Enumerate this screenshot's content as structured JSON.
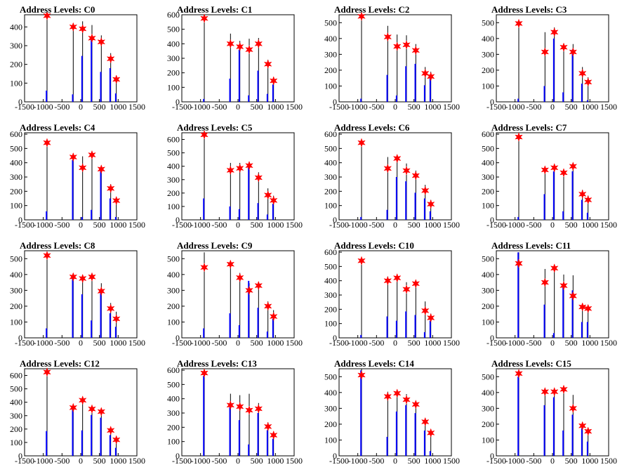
{
  "chart_data": [
    {
      "title": "Address Levels: C0",
      "type": "bar",
      "xlim": [
        -1500,
        1500
      ],
      "ylim": [
        0,
        465
      ],
      "yticks": [
        0,
        100,
        200,
        300,
        400
      ],
      "xticks": [
        -1500,
        -1000,
        -500,
        0,
        500,
        1000,
        1500
      ],
      "series": [
        {
          "x": [
            -900,
            -200,
            50,
            300,
            550,
            800,
            950
          ],
          "values": [
            460,
            400,
            390,
            340,
            320,
            230,
            120
          ],
          "errors": [
            0,
            0,
            40,
            70,
            35,
            30,
            20
          ]
        },
        {
          "x": [
            -915,
            -215,
            35,
            285,
            535,
            785,
            935
          ],
          "values": [
            60,
            40,
            245,
            330,
            160,
            180,
            45
          ]
        }
      ]
    },
    {
      "title": "Address Levels: C1",
      "type": "bar",
      "xlim": [
        -1500,
        1500
      ],
      "ylim": [
        0,
        600
      ],
      "yticks": [
        0,
        100,
        200,
        300,
        400,
        500,
        600
      ],
      "xticks": [
        -1500,
        -1000,
        -500,
        0,
        500,
        1000,
        1500
      ],
      "series": [
        {
          "x": [
            -900,
            -200,
            50,
            300,
            550,
            800,
            950
          ],
          "values": [
            575,
            400,
            380,
            360,
            400,
            260,
            145
          ],
          "errors": [
            0,
            70,
            40,
            75,
            40,
            30,
            25
          ]
        },
        {
          "x": [
            -915,
            -215,
            35,
            285,
            535,
            785,
            935
          ],
          "values": [
            20,
            160,
            360,
            45,
            215,
            55,
            120
          ]
        }
      ]
    },
    {
      "title": "Address Levels: C2",
      "type": "bar",
      "xlim": [
        -1500,
        1500
      ],
      "ylim": [
        0,
        550
      ],
      "yticks": [
        0,
        100,
        200,
        300,
        400,
        500
      ],
      "xticks": [
        -1500,
        -1000,
        -500,
        0,
        500,
        1000,
        1500
      ],
      "series": [
        {
          "x": [
            -900,
            -200,
            50,
            300,
            550,
            800,
            950
          ],
          "values": [
            540,
            410,
            350,
            360,
            325,
            180,
            160
          ],
          "errors": [
            0,
            70,
            75,
            60,
            40,
            40,
            30
          ]
        },
        {
          "x": [
            -915,
            -215,
            35,
            285,
            535,
            785,
            935
          ],
          "values": [
            20,
            170,
            40,
            225,
            240,
            105,
            160
          ]
        }
      ]
    },
    {
      "title": "Address Levels: C3",
      "type": "bar",
      "xlim": [
        -1500,
        1500
      ],
      "ylim": [
        0,
        550
      ],
      "yticks": [
        0,
        100,
        200,
        300,
        400,
        500
      ],
      "xticks": [
        -1500,
        -1000,
        -500,
        0,
        500,
        1000,
        1500
      ],
      "series": [
        {
          "x": [
            -900,
            -200,
            50,
            300,
            550,
            800,
            950
          ],
          "values": [
            495,
            315,
            440,
            345,
            315,
            180,
            125
          ],
          "errors": [
            0,
            125,
            30,
            20,
            50,
            40,
            30
          ]
        },
        {
          "x": [
            -915,
            -215,
            35,
            285,
            535,
            785,
            935
          ],
          "values": [
            20,
            100,
            400,
            60,
            330,
            115,
            10
          ]
        }
      ]
    },
    {
      "title": "Address Levels: C4",
      "type": "bar",
      "xlim": [
        -1500,
        1500
      ],
      "ylim": [
        0,
        610
      ],
      "yticks": [
        0,
        100,
        200,
        300,
        400,
        500,
        600
      ],
      "xticks": [
        -1500,
        -1000,
        -500,
        0,
        500,
        1000,
        1500
      ],
      "series": [
        {
          "x": [
            -900,
            -200,
            50,
            300,
            550,
            800,
            950
          ],
          "values": [
            540,
            440,
            365,
            455,
            355,
            220,
            135
          ],
          "errors": [
            0,
            20,
            80,
            20,
            25,
            30,
            20
          ]
        },
        {
          "x": [
            -915,
            -215,
            35,
            285,
            535,
            785,
            935
          ],
          "values": [
            60,
            420,
            20,
            70,
            350,
            150,
            20
          ]
        }
      ]
    },
    {
      "title": "Address Levels: C5",
      "type": "bar",
      "xlim": [
        -1500,
        1500
      ],
      "ylim": [
        0,
        650
      ],
      "yticks": [
        0,
        100,
        200,
        300,
        400,
        500,
        600
      ],
      "xticks": [
        -1500,
        -1000,
        -500,
        0,
        500,
        1000,
        1500
      ],
      "series": [
        {
          "x": [
            -900,
            -200,
            50,
            300,
            550,
            800,
            950
          ],
          "values": [
            635,
            370,
            385,
            405,
            315,
            185,
            145
          ],
          "errors": [
            0,
            55,
            40,
            30,
            40,
            50,
            35
          ]
        },
        {
          "x": [
            -915,
            -215,
            35,
            285,
            535,
            785,
            935
          ],
          "values": [
            160,
            100,
            80,
            400,
            125,
            40,
            120
          ]
        }
      ]
    },
    {
      "title": "Address Levels: C6",
      "type": "bar",
      "xlim": [
        -1500,
        1500
      ],
      "ylim": [
        0,
        610
      ],
      "yticks": [
        0,
        100,
        200,
        300,
        400,
        500,
        600
      ],
      "xticks": [
        -1500,
        -1000,
        -500,
        0,
        500,
        1000,
        1500
      ],
      "series": [
        {
          "x": [
            -900,
            -200,
            50,
            300,
            550,
            800,
            950
          ],
          "values": [
            540,
            360,
            430,
            345,
            310,
            205,
            110
          ],
          "errors": [
            0,
            80,
            20,
            50,
            35,
            40,
            30
          ]
        },
        {
          "x": [
            -915,
            -215,
            35,
            285,
            535,
            785,
            935
          ],
          "values": [
            20,
            70,
            300,
            270,
            190,
            150,
            60
          ]
        }
      ]
    },
    {
      "title": "Address Levels: C7",
      "type": "bar",
      "xlim": [
        -1500,
        1500
      ],
      "ylim": [
        0,
        610
      ],
      "yticks": [
        0,
        100,
        200,
        300,
        400,
        500,
        600
      ],
      "xticks": [
        -1500,
        -1000,
        -500,
        0,
        500,
        1000,
        1500
      ],
      "series": [
        {
          "x": [
            -900,
            -200,
            50,
            300,
            550,
            800,
            950
          ],
          "values": [
            580,
            350,
            365,
            330,
            375,
            180,
            140
          ],
          "errors": [
            0,
            20,
            20,
            20,
            15,
            30,
            30
          ]
        },
        {
          "x": [
            -915,
            -215,
            35,
            285,
            535,
            785,
            935
          ],
          "values": [
            20,
            180,
            340,
            60,
            340,
            140,
            50
          ]
        }
      ]
    },
    {
      "title": "Address Levels: C8",
      "type": "bar",
      "xlim": [
        -1500,
        1500
      ],
      "ylim": [
        0,
        550
      ],
      "yticks": [
        0,
        100,
        200,
        300,
        400,
        500
      ],
      "xticks": [
        -1500,
        -1000,
        -500,
        0,
        500,
        1000,
        1500
      ],
      "series": [
        {
          "x": [
            -900,
            -200,
            50,
            300,
            550,
            800,
            950
          ],
          "values": [
            520,
            385,
            375,
            385,
            295,
            185,
            120
          ],
          "errors": [
            0,
            20,
            20,
            20,
            50,
            35,
            45
          ]
        },
        {
          "x": [
            -915,
            -215,
            35,
            285,
            535,
            785,
            935
          ],
          "values": [
            60,
            380,
            275,
            110,
            290,
            155,
            70
          ]
        }
      ]
    },
    {
      "title": "Address Levels: C9",
      "type": "bar",
      "xlim": [
        -1500,
        1500
      ],
      "ylim": [
        0,
        550
      ],
      "yticks": [
        0,
        100,
        200,
        300,
        400,
        500
      ],
      "xticks": [
        -1500,
        -1000,
        -500,
        0,
        500,
        1000,
        1500
      ],
      "series": [
        {
          "x": [
            -900,
            -200,
            50,
            300,
            550,
            800,
            950
          ],
          "values": [
            445,
            465,
            380,
            300,
            330,
            200,
            135
          ],
          "errors": [
            95,
            20,
            30,
            45,
            25,
            30,
            40
          ]
        },
        {
          "x": [
            -915,
            -215,
            35,
            285,
            535,
            785,
            935
          ],
          "values": [
            60,
            155,
            80,
            360,
            190,
            40,
            120
          ]
        }
      ]
    },
    {
      "title": "Address Levels: C10",
      "type": "bar",
      "xlim": [
        -1500,
        1500
      ],
      "ylim": [
        0,
        610
      ],
      "yticks": [
        0,
        100,
        200,
        300,
        400,
        500,
        600
      ],
      "xticks": [
        -1500,
        -1000,
        -500,
        0,
        500,
        1000,
        1500
      ],
      "series": [
        {
          "x": [
            -900,
            -200,
            50,
            300,
            550,
            800,
            950
          ],
          "values": [
            540,
            400,
            420,
            340,
            380,
            190,
            140
          ],
          "errors": [
            0,
            30,
            20,
            50,
            20,
            65,
            30
          ]
        },
        {
          "x": [
            -915,
            -215,
            35,
            285,
            535,
            785,
            935
          ],
          "values": [
            20,
            150,
            120,
            185,
            160,
            40,
            120
          ]
        }
      ]
    },
    {
      "title": "Address Levels: C11",
      "type": "bar",
      "xlim": [
        -1500,
        1500
      ],
      "ylim": [
        0,
        550
      ],
      "yticks": [
        0,
        100,
        200,
        300,
        400,
        500
      ],
      "xticks": [
        -1500,
        -1000,
        -500,
        0,
        500,
        1000,
        1500
      ],
      "series": [
        {
          "x": [
            -900,
            -200,
            50,
            300,
            550,
            800,
            950
          ],
          "values": [
            470,
            350,
            440,
            330,
            265,
            195,
            185
          ],
          "errors": [
            70,
            85,
            20,
            70,
            130,
            20,
            20
          ]
        },
        {
          "x": [
            -915,
            -215,
            35,
            285,
            535,
            785,
            935
          ],
          "values": [
            540,
            210,
            30,
            320,
            300,
            100,
            100
          ]
        }
      ]
    },
    {
      "title": "Address Levels: C12",
      "type": "bar",
      "xlim": [
        -1500,
        1500
      ],
      "ylim": [
        0,
        650
      ],
      "yticks": [
        0,
        100,
        200,
        300,
        400,
        500,
        600
      ],
      "xticks": [
        -1500,
        -1000,
        -500,
        0,
        500,
        1000,
        1500
      ],
      "series": [
        {
          "x": [
            -900,
            -200,
            50,
            300,
            550,
            800,
            950
          ],
          "values": [
            625,
            360,
            415,
            350,
            330,
            190,
            120
          ],
          "errors": [
            0,
            20,
            20,
            20,
            20,
            20,
            20
          ]
        },
        {
          "x": [
            -915,
            -215,
            35,
            285,
            535,
            785,
            935
          ],
          "values": [
            185,
            350,
            190,
            305,
            285,
            155,
            60
          ]
        }
      ]
    },
    {
      "title": "Address Levels: C13",
      "type": "bar",
      "xlim": [
        -1500,
        1500
      ],
      "ylim": [
        0,
        610
      ],
      "yticks": [
        0,
        100,
        200,
        300,
        400,
        500,
        600
      ],
      "xticks": [
        -1500,
        -1000,
        -500,
        0,
        500,
        1000,
        1500
      ],
      "series": [
        {
          "x": [
            -900,
            -200,
            50,
            300,
            550,
            800,
            950
          ],
          "values": [
            580,
            355,
            345,
            320,
            330,
            205,
            145
          ],
          "errors": [
            0,
            80,
            80,
            115,
            40,
            30,
            20
          ]
        },
        {
          "x": [
            -915,
            -215,
            35,
            285,
            535,
            785,
            935
          ],
          "values": [
            560,
            340,
            250,
            80,
            300,
            180,
            120
          ]
        }
      ]
    },
    {
      "title": "Address Levels: C14",
      "type": "bar",
      "xlim": [
        -1500,
        1500
      ],
      "ylim": [
        0,
        550
      ],
      "yticks": [
        0,
        100,
        200,
        300,
        400,
        500
      ],
      "xticks": [
        -1500,
        -1000,
        -500,
        0,
        500,
        1000,
        1500
      ],
      "series": [
        {
          "x": [
            -900,
            -200,
            50,
            300,
            550,
            800,
            950
          ],
          "values": [
            510,
            375,
            395,
            355,
            325,
            215,
            145
          ],
          "errors": [
            50,
            30,
            20,
            35,
            20,
            20,
            20
          ]
        },
        {
          "x": [
            -915,
            -215,
            35,
            285,
            535,
            785,
            935
          ],
          "values": [
            540,
            120,
            280,
            320,
            270,
            160,
            30
          ]
        }
      ]
    },
    {
      "title": "Address Levels: C15",
      "type": "bar",
      "xlim": [
        -1500,
        1500
      ],
      "ylim": [
        0,
        550
      ],
      "yticks": [
        0,
        100,
        200,
        300,
        400,
        500
      ],
      "xticks": [
        -1500,
        -1000,
        -500,
        0,
        500,
        1000,
        1500
      ],
      "series": [
        {
          "x": [
            -900,
            -200,
            50,
            300,
            550,
            800,
            950
          ],
          "values": [
            520,
            405,
            405,
            420,
            300,
            190,
            155
          ],
          "errors": [
            0,
            20,
            20,
            20,
            85,
            20,
            20
          ]
        },
        {
          "x": [
            -915,
            -215,
            35,
            285,
            535,
            785,
            935
          ],
          "values": [
            500,
            320,
            370,
            160,
            260,
            175,
            90
          ]
        }
      ]
    }
  ],
  "colors": {
    "measured": "#000000",
    "simulated": "#0000ff",
    "marker": "#ff0000"
  }
}
